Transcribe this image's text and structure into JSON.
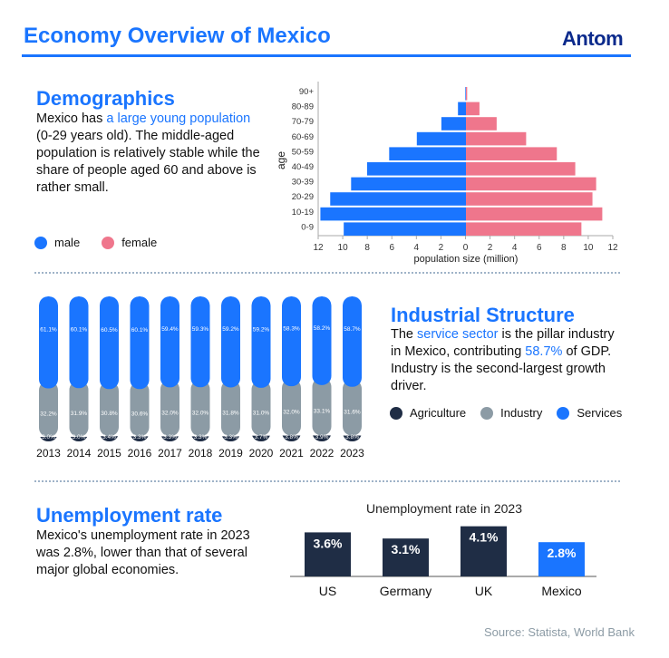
{
  "header": {
    "title": "Economy Overview of Mexico",
    "logo": "Antom"
  },
  "colors": {
    "blue": "#1a75ff",
    "pink": "#ef768c",
    "navy": "#1f2d45",
    "gray": "#8c9ba5"
  },
  "demographics": {
    "heading": "Demographics",
    "text_pre": "Mexico has ",
    "text_highlight": "a large young population",
    "text_post": " (0-29 years old). The middle-aged population is relatively stable while the share of people aged 60 and above is rather small.",
    "legend": [
      {
        "label": "male",
        "color": "#1a75ff"
      },
      {
        "label": "female",
        "color": "#ef768c"
      }
    ]
  },
  "industry": {
    "heading": "Industrial Structure",
    "text_pre": "The ",
    "text_highlight1": "service sector",
    "text_mid": " is the pillar industry in Mexico, contributing ",
    "text_highlight2": "58.7%",
    "text_post": " of GDP. Industry is the second-largest growth driver.",
    "legend": [
      {
        "label": "Agriculture",
        "color": "#1f2d45"
      },
      {
        "label": "Industry",
        "color": "#8c9ba5"
      },
      {
        "label": "Services",
        "color": "#1a75ff"
      }
    ]
  },
  "unemployment": {
    "heading": "Unemployment rate",
    "text": "Mexico's unemployment rate in 2023 was 2.8%, lower than that of several major global economies."
  },
  "source": "Source: Statista, World Bank",
  "chart_data": [
    {
      "type": "bar",
      "orientation": "horizontal",
      "subtype": "population-pyramid",
      "xlabel": "population size (million)",
      "ylabel": "age",
      "xlim": [
        -12,
        12
      ],
      "x_ticks": [
        "12",
        "10",
        "8",
        "6",
        "4",
        "2",
        "0",
        "2",
        "4",
        "6",
        "8",
        "10",
        "12"
      ],
      "categories": [
        "90+",
        "80-89",
        "70-79",
        "60-69",
        "50-59",
        "40-49",
        "30-39",
        "20-29",
        "10-19",
        "0-9"
      ],
      "series": [
        {
          "name": "male",
          "color": "#1a75ff",
          "values": [
            0.05,
            0.65,
            2.0,
            4.0,
            6.25,
            8.05,
            9.35,
            11.05,
            11.85,
            9.95
          ]
        },
        {
          "name": "female",
          "color": "#ef768c",
          "values": [
            0.1,
            1.1,
            2.5,
            4.9,
            7.4,
            8.9,
            10.6,
            10.3,
            11.1,
            9.4
          ]
        }
      ]
    },
    {
      "type": "bar",
      "subtype": "stacked-percent",
      "categories": [
        "2013",
        "2014",
        "2015",
        "2016",
        "2017",
        "2018",
        "2019",
        "2020",
        "2021",
        "2022",
        "2023"
      ],
      "series": [
        {
          "name": "Agriculture",
          "color": "#1f2d45",
          "values": [
            3.0,
            3.0,
            3.4,
            3.3,
            3.3,
            3.3,
            3.3,
            3.7,
            3.8,
            3.9,
            3.8
          ]
        },
        {
          "name": "Industry",
          "color": "#8c9ba5",
          "values": [
            32.2,
            31.9,
            30.8,
            30.6,
            32.0,
            32.0,
            31.8,
            31.0,
            32.0,
            33.1,
            31.6
          ]
        },
        {
          "name": "Services",
          "color": "#1a75ff",
          "values": [
            61.1,
            60.1,
            60.5,
            60.1,
            59.4,
            59.3,
            59.2,
            59.2,
            58.3,
            58.2,
            58.7
          ]
        }
      ],
      "unit": "%"
    },
    {
      "type": "bar",
      "title": "Unemployment rate in 2023",
      "categories": [
        "US",
        "Germany",
        "UK",
        "Mexico"
      ],
      "values": [
        3.6,
        3.1,
        4.1,
        2.8
      ],
      "labels": [
        "3.6%",
        "3.1%",
        "4.1%",
        "2.8%"
      ],
      "colors": [
        "#1f2d45",
        "#1f2d45",
        "#1f2d45",
        "#1a75ff"
      ]
    }
  ]
}
